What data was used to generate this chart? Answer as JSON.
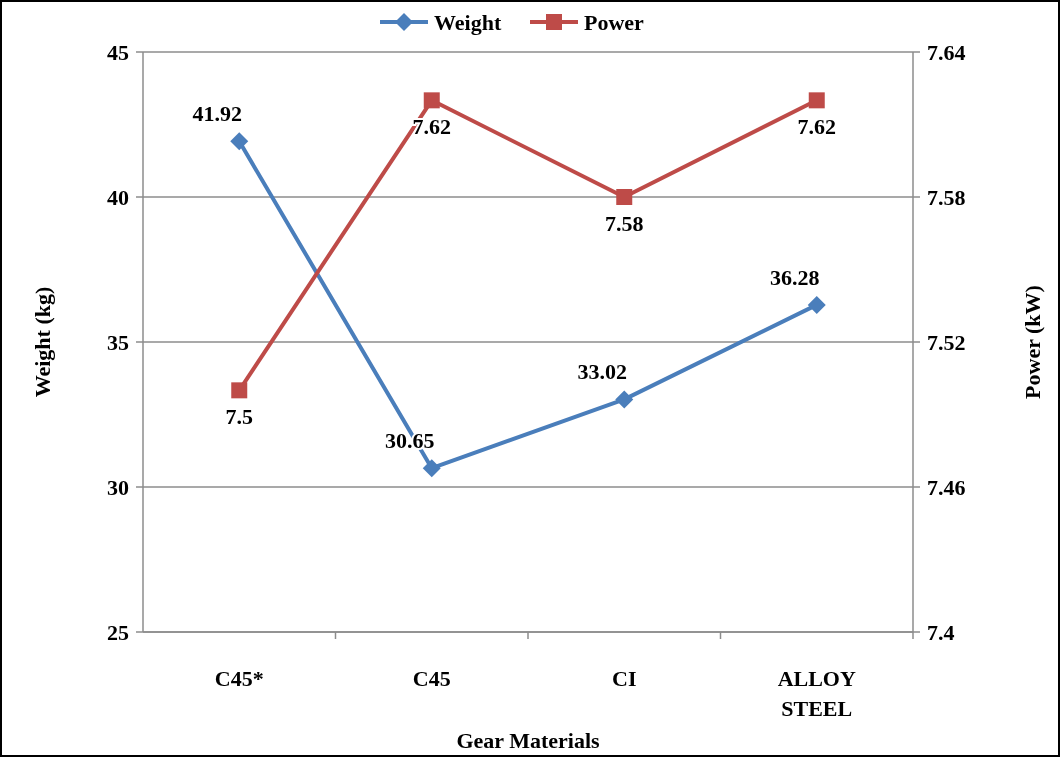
{
  "chart_data": {
    "type": "line",
    "xlabel": "Gear Materials",
    "ylabel": "Weight (kg)",
    "y2label": "Power (kW)",
    "categories": [
      "C45*",
      "C45",
      "CI",
      "ALLOY STEEL"
    ],
    "series": [
      {
        "name": "Weight",
        "color": "#4a7ebb",
        "marker": "diamond",
        "values": [
          41.92,
          30.65,
          33.02,
          36.28
        ]
      },
      {
        "name": "Power",
        "color": "#be4b48",
        "marker": "square",
        "axis": "y2",
        "values": [
          7.5,
          7.62,
          7.58,
          7.62
        ]
      }
    ],
    "ylim": [
      25,
      45
    ],
    "yticks": [
      25,
      30,
      35,
      40,
      45
    ],
    "y2lim": [
      7.4,
      7.64
    ],
    "y2ticks": [
      7.4,
      7.46,
      7.52,
      7.58,
      7.64
    ],
    "grid": "y",
    "legend": "top",
    "data_labels": true
  }
}
